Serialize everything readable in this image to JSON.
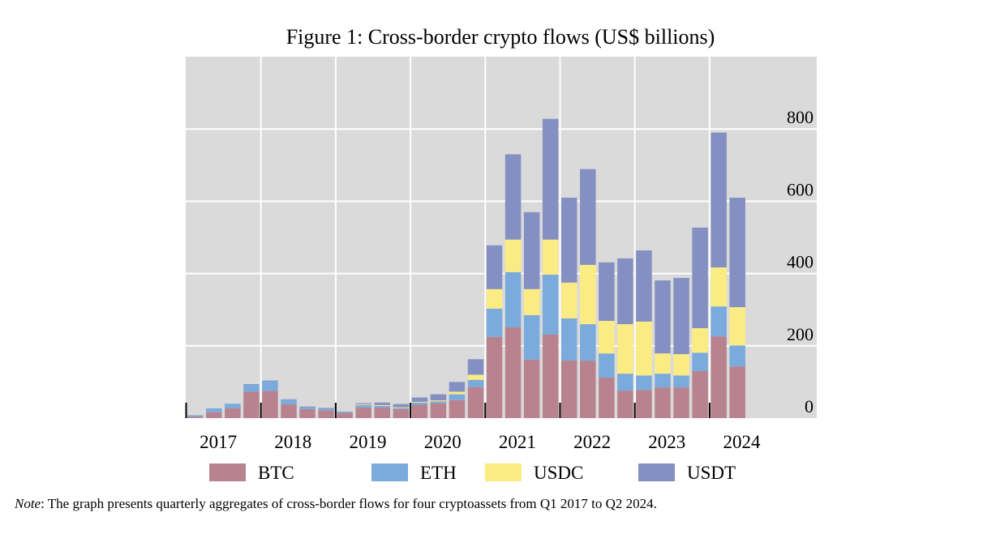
{
  "chart_data": {
    "type": "bar",
    "stacked": true,
    "title": "Figure 1: Cross-border crypto flows (US$ billions)",
    "xlabel": "",
    "ylabel": "",
    "ylim": [
      0,
      1000
    ],
    "yticks": [
      0,
      200,
      400,
      600,
      800
    ],
    "ytick_position": "right",
    "grid": true,
    "legend_position": "bottom",
    "background": "#dadada",
    "year_labels": [
      "2017",
      "2018",
      "2019",
      "2020",
      "2021",
      "2022",
      "2023",
      "2024"
    ],
    "categories": [
      "Q1 2017",
      "Q2 2017",
      "Q3 2017",
      "Q4 2017",
      "Q1 2018",
      "Q2 2018",
      "Q3 2018",
      "Q4 2018",
      "Q1 2019",
      "Q2 2019",
      "Q3 2019",
      "Q4 2019",
      "Q1 2020",
      "Q2 2020",
      "Q3 2020",
      "Q4 2020",
      "Q1 2021",
      "Q2 2021",
      "Q3 2021",
      "Q4 2021",
      "Q1 2022",
      "Q2 2022",
      "Q3 2022",
      "Q4 2022",
      "Q1 2023",
      "Q2 2023",
      "Q3 2023",
      "Q4 2023",
      "Q1 2024",
      "Q2 2024"
    ],
    "series": [
      {
        "name": "BTC",
        "color": "#b8838f",
        "values": [
          4,
          16,
          27,
          73,
          75,
          38,
          25,
          21,
          14,
          29,
          29,
          25,
          37,
          41,
          50,
          86,
          225,
          251,
          162,
          231,
          159,
          159,
          112,
          76,
          78,
          85,
          85,
          130,
          226,
          143
        ]
      },
      {
        "name": "ETH",
        "color": "#7aabdc",
        "values": [
          3,
          11,
          13,
          19,
          27,
          12,
          5,
          4,
          2,
          7,
          5,
          3,
          6,
          5,
          16,
          20,
          78,
          153,
          123,
          166,
          117,
          101,
          67,
          47,
          40,
          38,
          33,
          51,
          83,
          58
        ]
      },
      {
        "name": "USDC",
        "color": "#fbeb83",
        "values": [
          0,
          0,
          0,
          0,
          0,
          0,
          0,
          0,
          0,
          2,
          2,
          2,
          2,
          3,
          7,
          14,
          54,
          90,
          72,
          97,
          99,
          164,
          90,
          137,
          149,
          56,
          59,
          68,
          108,
          106
        ]
      },
      {
        "name": "USDT",
        "color": "#8490c2",
        "values": [
          1,
          0,
          0,
          2,
          2,
          2,
          2,
          3,
          2,
          3,
          7,
          9,
          12,
          17,
          27,
          43,
          121,
          236,
          213,
          334,
          235,
          265,
          162,
          182,
          197,
          202,
          211,
          278,
          373,
          303
        ]
      }
    ]
  },
  "note": {
    "label": "Note",
    "text": ": The graph presents quarterly aggregates of cross-border flows for four cryptoassets from Q1 2017 to Q2 2024."
  }
}
